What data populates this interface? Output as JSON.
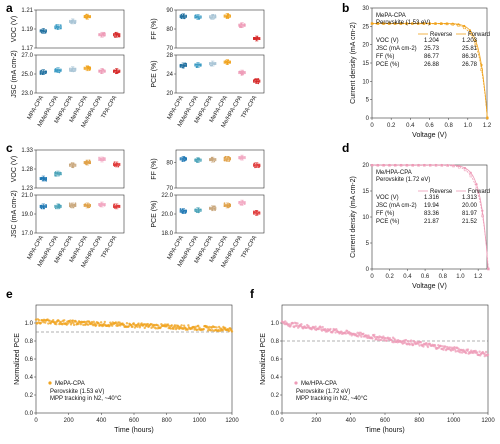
{
  "panels": {
    "a": "a",
    "b": "b",
    "c": "c",
    "d": "d",
    "e": "e",
    "f": "f"
  },
  "colors": {
    "MPA-CPA": "#1f6f9f",
    "MMePA-CPA": "#3a9bc4",
    "MHPA-CPA": "#a9c5d6",
    "MePA-CPA": "#f0a31e",
    "MeHPA-CPA": "#ee9bb7",
    "TPA-CPA": "#d62828",
    "c_MPA": "#1f78b4",
    "c_MMePA": "#4aa3b8",
    "c_MHPA": "#c9a77c",
    "c_MePA": "#e0a046",
    "c_MeHPA": "#f2a8c2",
    "c_TPA": "#e03a3a"
  },
  "chart_data": [
    {
      "type": "box",
      "panel": "a",
      "categories": [
        "MPA-CPA",
        "MMePA-CPA",
        "MHPA-CPA",
        "MePA-CPA",
        "MeHPA-CPA",
        "TPA-CPA"
      ],
      "subplots": [
        {
          "ylabel": "VOC (V)",
          "yticks": [
            "1.17",
            "1.19",
            "1.21"
          ],
          "ylim": [
            1.17,
            1.21
          ],
          "medians": [
            1.188,
            1.192,
            1.198,
            1.203,
            1.184,
            1.184
          ]
        },
        {
          "ylabel": "FF (%)",
          "yticks": [
            "70",
            "80",
            "90"
          ],
          "ylim": [
            70,
            90
          ],
          "medians": [
            86.7,
            86.3,
            86.4,
            86.8,
            82.0,
            75.0
          ]
        },
        {
          "ylabel": "JSC (mA cm-2)",
          "yticks": [
            "23.0",
            "25.0",
            "27.0"
          ],
          "ylim": [
            23.0,
            27.0
          ],
          "medians": [
            25.2,
            25.4,
            25.5,
            25.6,
            25.3,
            25.3
          ]
        },
        {
          "ylabel": "PCE (%)",
          "yticks": [
            "20",
            "24",
            "28"
          ],
          "ylim": [
            20,
            28
          ],
          "medians": [
            25.8,
            25.9,
            26.2,
            26.5,
            24.3,
            22.5
          ]
        }
      ]
    },
    {
      "type": "line",
      "panel": "b",
      "title": "MePA-CPA",
      "subtitle": "Perovskite (1.53 eV)",
      "xlabel": "Voltage (V)",
      "ylabel": "Current density (mA cm-2)",
      "xlim": [
        0,
        1.2
      ],
      "ylim": [
        0,
        30
      ],
      "xticks": [
        "0",
        "0.2",
        "0.4",
        "0.6",
        "0.8",
        "1.0",
        "1.2"
      ],
      "yticks": [
        "0",
        "5",
        "10",
        "15",
        "20",
        "25",
        "30"
      ],
      "series": [
        {
          "name": "Reverse",
          "jsc": 25.73,
          "voc": 1.204
        },
        {
          "name": "Forward",
          "jsc": 25.81,
          "voc": 1.203
        }
      ],
      "table": {
        "headers": [
          "",
          "Reverse",
          "Forward"
        ],
        "rows": [
          [
            "VOC (V)",
            "1.204",
            "1.203"
          ],
          [
            "JSC (mA cm-2)",
            "25.73",
            "25.81"
          ],
          [
            "FF (%)",
            "86.77",
            "86.30"
          ],
          [
            "PCE (%)",
            "26.88",
            "26.78"
          ]
        ]
      }
    },
    {
      "type": "box",
      "panel": "c",
      "categories": [
        "MPA-CPA",
        "MMePA-CPA",
        "MHPA-CPA",
        "MePA-CPA",
        "MeHPA-CPA",
        "TPA-CPA"
      ],
      "subplots": [
        {
          "ylabel": "VOC (V)",
          "yticks": [
            "1.23",
            "1.28",
            "1.33"
          ],
          "ylim": [
            1.23,
            1.33
          ],
          "medians": [
            1.255,
            1.268,
            1.29,
            1.297,
            1.305,
            1.292
          ]
        },
        {
          "ylabel": "FF (%)",
          "yticks": [
            "70",
            "80"
          ],
          "ylim": [
            70,
            85
          ],
          "medians": [
            81.5,
            81.0,
            81.2,
            81.5,
            82.0,
            79.0
          ]
        },
        {
          "ylabel": "JSC (mA cm-2)",
          "yticks": [
            "17.0",
            "19.0",
            "21.0"
          ],
          "ylim": [
            17.0,
            21.0
          ],
          "medians": [
            19.8,
            19.8,
            19.9,
            19.9,
            20.0,
            19.8
          ]
        },
        {
          "ylabel": "PCE (%)",
          "yticks": [
            "18.0",
            "20.0",
            "22.0"
          ],
          "ylim": [
            18.0,
            22.0
          ],
          "medians": [
            20.3,
            20.4,
            20.6,
            20.9,
            21.2,
            20.1
          ]
        }
      ]
    },
    {
      "type": "line",
      "panel": "d",
      "title": "Me/HPA-CPA",
      "subtitle": "Perovskite (1.72 eV)",
      "xlabel": "Voltage (V)",
      "ylabel": "Current density (mA cm-2)",
      "xlim": [
        0,
        1.3
      ],
      "ylim": [
        0,
        20
      ],
      "xticks": [
        "0",
        "0.2",
        "0.4",
        "0.6",
        "0.8",
        "1.0",
        "1.2"
      ],
      "yticks": [
        "0",
        "5",
        "10",
        "15",
        "20"
      ],
      "series": [
        {
          "name": "Reverse",
          "jsc": 19.94,
          "voc": 1.316
        },
        {
          "name": "Forward",
          "jsc": 20.0,
          "voc": 1.313
        }
      ],
      "table": {
        "headers": [
          "",
          "Reverse",
          "Forward"
        ],
        "rows": [
          [
            "VOC (V)",
            "1.316",
            "1.313"
          ],
          [
            "JSC (mA cm-2)",
            "19.94",
            "20.00"
          ],
          [
            "FF (%)",
            "83.36",
            "81.97"
          ],
          [
            "PCE (%)",
            "21.87",
            "21.52"
          ]
        ]
      }
    },
    {
      "type": "scatter",
      "panel": "e",
      "xlabel": "Time (hours)",
      "ylabel": "Normalized PCE",
      "xlim": [
        0,
        1200
      ],
      "ylim": [
        0,
        1.2
      ],
      "xticks": [
        "0",
        "200",
        "400",
        "600",
        "800",
        "1000",
        "1200"
      ],
      "yticks": [
        "0.0",
        "0.2",
        "0.4",
        "0.6",
        "0.8",
        "1.0"
      ],
      "series": [
        {
          "name": "MePA-CPA",
          "start": 1.02,
          "end": 0.93
        }
      ],
      "annotation": [
        "Perovskite (1.53 eV)",
        "MPP tracking in N2, ~40°C"
      ],
      "refline": 0.9
    },
    {
      "type": "scatter",
      "panel": "f",
      "xlabel": "Time (hours)",
      "ylabel": "Normalized PCE",
      "xlim": [
        0,
        1200
      ],
      "ylim": [
        0,
        1.2
      ],
      "xticks": [
        "0",
        "200",
        "400",
        "600",
        "800",
        "1000",
        "1200"
      ],
      "yticks": [
        "0.0",
        "0.2",
        "0.4",
        "0.6",
        "0.8",
        "1.0"
      ],
      "series": [
        {
          "name": "Me/HPA-CPA",
          "start": 1.0,
          "end": 0.65
        }
      ],
      "annotation": [
        "Perovskite (1.72 eV)",
        "MPP tracking in N2, ~40°C"
      ],
      "refline": 0.8
    }
  ]
}
